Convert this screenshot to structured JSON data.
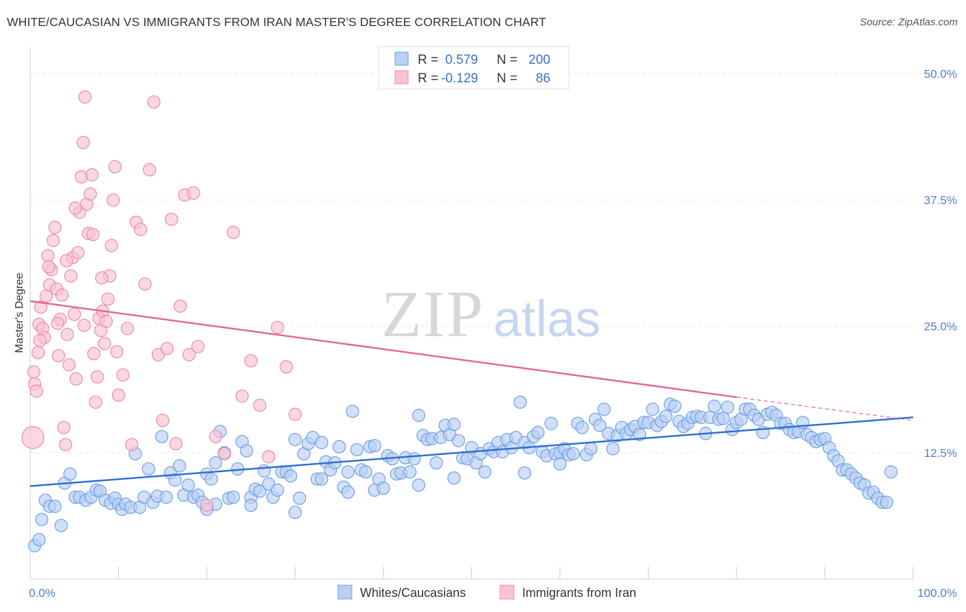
{
  "title": "WHITE/CAUCASIAN VS IMMIGRANTS FROM IRAN MASTER'S DEGREE CORRELATION CHART",
  "source": "Source: ZipAtlas.com",
  "watermark": {
    "zip": "ZIP",
    "atlas": "atlas"
  },
  "chart_data": {
    "type": "scatter",
    "ylabel": "Master's Degree",
    "xlim": [
      0,
      100
    ],
    "ylim": [
      0,
      52
    ],
    "x_tick_labels": [
      "0.0%",
      "100.0%"
    ],
    "y_ticks": [
      {
        "value": 12.5,
        "label": "12.5%"
      },
      {
        "value": 25.0,
        "label": "25.0%"
      },
      {
        "value": 37.5,
        "label": "37.5%"
      },
      {
        "value": 50.0,
        "label": "50.0%"
      }
    ],
    "grid": true,
    "legend": {
      "placement": "top-center",
      "rows": [
        {
          "r_label": "R =",
          "r_value": "0.579",
          "n_label": "N =",
          "n_value": "200",
          "color": "#7aaaf0"
        },
        {
          "r_label": "R =",
          "r_value": "-0.129",
          "n_label": "N =",
          "n_value": "86",
          "color": "#f5a0bb"
        }
      ]
    },
    "series": [
      {
        "name": "Whites/Caucasians",
        "color": "#6d9ee8",
        "fill": "#b9d0f4",
        "trend": {
          "x0": 0,
          "y0": 9.2,
          "x1": 100,
          "y1": 16.0
        },
        "points": [
          [
            0.5,
            3.3
          ],
          [
            1,
            3.9
          ],
          [
            1.3,
            5.9
          ],
          [
            1.7,
            7.8
          ],
          [
            2.2,
            7.2
          ],
          [
            2.8,
            7.2
          ],
          [
            3.5,
            5.3
          ],
          [
            3.9,
            9.5
          ],
          [
            4.5,
            10.4
          ],
          [
            5.1,
            8.1
          ],
          [
            5.6,
            8.1
          ],
          [
            6.3,
            7.8
          ],
          [
            6.9,
            8.1
          ],
          [
            7.5,
            8.8
          ],
          [
            7.9,
            8.7
          ],
          [
            8.5,
            7.8
          ],
          [
            9.1,
            7.5
          ],
          [
            9.6,
            8.0
          ],
          [
            10,
            7.4
          ],
          [
            10.4,
            6.9
          ],
          [
            10.8,
            7.4
          ],
          [
            11.4,
            7.1
          ],
          [
            11.9,
            12.4
          ],
          [
            12.4,
            7.1
          ],
          [
            12.9,
            8.1
          ],
          [
            13.4,
            10.9
          ],
          [
            13.9,
            7.6
          ],
          [
            14.4,
            8.2
          ],
          [
            14.9,
            14.1
          ],
          [
            15.4,
            8.1
          ],
          [
            15.9,
            10.5
          ],
          [
            16.4,
            9.8
          ],
          [
            16.9,
            11.2
          ],
          [
            17.4,
            8.3
          ],
          [
            17.9,
            9.3
          ],
          [
            18.5,
            8.1
          ],
          [
            19,
            8.3
          ],
          [
            19.5,
            7.6
          ],
          [
            20,
            10.4
          ],
          [
            20.5,
            9.9
          ],
          [
            21,
            7.4
          ],
          [
            21.5,
            14.6
          ],
          [
            22,
            12.5
          ],
          [
            22.5,
            8.0
          ],
          [
            23,
            8.1
          ],
          [
            23.5,
            10.9
          ],
          [
            24,
            13.6
          ],
          [
            24.5,
            12.7
          ],
          [
            25,
            8.1
          ],
          [
            25.5,
            8.9
          ],
          [
            26,
            8.7
          ],
          [
            26.5,
            10.7
          ],
          [
            27,
            9.4
          ],
          [
            27.5,
            8.1
          ],
          [
            28,
            8.8
          ],
          [
            28.5,
            10.6
          ],
          [
            29,
            10.6
          ],
          [
            29.5,
            10.2
          ],
          [
            30,
            13.8
          ],
          [
            30.5,
            8.0
          ],
          [
            31,
            12.4
          ],
          [
            31.5,
            13.4
          ],
          [
            32,
            14.0
          ],
          [
            32.5,
            9.9
          ],
          [
            33,
            9.9
          ],
          [
            33.5,
            11.6
          ],
          [
            34,
            10.8
          ],
          [
            34.5,
            11.5
          ],
          [
            35,
            13.1
          ],
          [
            35.5,
            9.1
          ],
          [
            36,
            8.6
          ],
          [
            36.5,
            16.6
          ],
          [
            37,
            12.8
          ],
          [
            37.5,
            10.8
          ],
          [
            38,
            10.6
          ],
          [
            38.5,
            13.1
          ],
          [
            39,
            8.8
          ],
          [
            39.5,
            9.9
          ],
          [
            40,
            9.0
          ],
          [
            40.5,
            12.2
          ],
          [
            41,
            11.9
          ],
          [
            41.5,
            10.4
          ],
          [
            42,
            10.5
          ],
          [
            42.5,
            12.0
          ],
          [
            43,
            10.6
          ],
          [
            43.5,
            11.9
          ],
          [
            44,
            16.2
          ],
          [
            44.5,
            14.2
          ],
          [
            45,
            13.8
          ],
          [
            45.5,
            13.9
          ],
          [
            46,
            11.5
          ],
          [
            46.5,
            14.0
          ],
          [
            47,
            15.2
          ],
          [
            47.5,
            14.3
          ],
          [
            48,
            15.3
          ],
          [
            48.5,
            13.7
          ],
          [
            49,
            12.0
          ],
          [
            49.5,
            11.9
          ],
          [
            50,
            13.0
          ],
          [
            50.5,
            11.5
          ],
          [
            51,
            12.4
          ],
          [
            51.5,
            10.6
          ],
          [
            52,
            12.9
          ],
          [
            52.5,
            12.6
          ],
          [
            53,
            13.5
          ],
          [
            53.5,
            12.6
          ],
          [
            54,
            13.8
          ],
          [
            54.5,
            13.0
          ],
          [
            55,
            14.0
          ],
          [
            55.5,
            17.5
          ],
          [
            56,
            13.5
          ],
          [
            56.5,
            13.0
          ],
          [
            57,
            14.1
          ],
          [
            57.5,
            14.5
          ],
          [
            58,
            12.6
          ],
          [
            58.5,
            12.2
          ],
          [
            59,
            15.4
          ],
          [
            59.5,
            12.4
          ],
          [
            60,
            12.5
          ],
          [
            60.5,
            12.9
          ],
          [
            61,
            12.3
          ],
          [
            61.5,
            12.4
          ],
          [
            62,
            15.4
          ],
          [
            62.5,
            15.0
          ],
          [
            63,
            12.3
          ],
          [
            63.5,
            12.9
          ],
          [
            64,
            15.8
          ],
          [
            64.5,
            15.2
          ],
          [
            65,
            16.8
          ],
          [
            65.5,
            14.4
          ],
          [
            66,
            12.9
          ],
          [
            66.5,
            14.2
          ],
          [
            67,
            15.0
          ],
          [
            67.5,
            14.4
          ],
          [
            68,
            14.8
          ],
          [
            68.5,
            15.1
          ],
          [
            69,
            14.3
          ],
          [
            69.5,
            15.5
          ],
          [
            70,
            15.5
          ],
          [
            70.5,
            16.8
          ],
          [
            71,
            15.2
          ],
          [
            71.5,
            15.6
          ],
          [
            72,
            16.1
          ],
          [
            72.5,
            17.3
          ],
          [
            73,
            17.1
          ],
          [
            73.5,
            15.6
          ],
          [
            74,
            15.1
          ],
          [
            74.5,
            15.4
          ],
          [
            75,
            16.0
          ],
          [
            75.5,
            16.1
          ],
          [
            76,
            16.0
          ],
          [
            76.5,
            14.4
          ],
          [
            77,
            16.0
          ],
          [
            77.5,
            17.1
          ],
          [
            78,
            15.8
          ],
          [
            78.5,
            15.9
          ],
          [
            79,
            17.0
          ],
          [
            79.5,
            14.8
          ],
          [
            80,
            15.5
          ],
          [
            80.5,
            15.8
          ],
          [
            81,
            16.8
          ],
          [
            81.5,
            16.8
          ],
          [
            82,
            16.2
          ],
          [
            82.5,
            15.8
          ],
          [
            83,
            14.5
          ],
          [
            83.5,
            16.3
          ],
          [
            84,
            16.5
          ],
          [
            84.5,
            16.2
          ],
          [
            85,
            15.4
          ],
          [
            85.5,
            15.4
          ],
          [
            86,
            14.8
          ],
          [
            86.5,
            14.5
          ],
          [
            87,
            14.6
          ],
          [
            87.5,
            15.5
          ],
          [
            88,
            14.3
          ],
          [
            88.5,
            14.0
          ],
          [
            89,
            13.6
          ],
          [
            89.5,
            13.8
          ],
          [
            90,
            13.9
          ],
          [
            90.5,
            13.0
          ],
          [
            91,
            12.2
          ],
          [
            91.5,
            11.7
          ],
          [
            92,
            10.8
          ],
          [
            92.5,
            10.8
          ],
          [
            93,
            10.4
          ],
          [
            93.5,
            10.0
          ],
          [
            94,
            9.5
          ],
          [
            94.5,
            9.3
          ],
          [
            95,
            8.5
          ],
          [
            95.5,
            8.6
          ],
          [
            96,
            8.0
          ],
          [
            96.5,
            7.6
          ],
          [
            97,
            7.6
          ],
          [
            97.5,
            10.6
          ],
          [
            60,
            11.4
          ],
          [
            30,
            6.6
          ],
          [
            25,
            7.3
          ],
          [
            36,
            10.6
          ],
          [
            48,
            10.0
          ],
          [
            56,
            10.5
          ],
          [
            33,
            13.5
          ],
          [
            21,
            11.5
          ],
          [
            44,
            9.3
          ],
          [
            39,
            13.2
          ],
          [
            20,
            6.9
          ]
        ]
      },
      {
        "name": "Immigrants from Iran",
        "color": "#ee88a8",
        "fill": "#f8c3d3",
        "trend": {
          "x0": 0,
          "y0": 27.5,
          "x1": 80,
          "y1": 18.0
        },
        "trend_dashed": {
          "x0": 80,
          "y0": 18.0,
          "x1": 100,
          "y1": 15.7
        },
        "points": [
          [
            0.3,
            14.0
          ],
          [
            0.5,
            19.3
          ],
          [
            0.7,
            18.6
          ],
          [
            0.9,
            22.4
          ],
          [
            1.0,
            25.2
          ],
          [
            1.2,
            26.9
          ],
          [
            1.4,
            24.8
          ],
          [
            1.6,
            23.9
          ],
          [
            1.8,
            28.0
          ],
          [
            2.0,
            32.0
          ],
          [
            2.2,
            29.1
          ],
          [
            2.4,
            30.6
          ],
          [
            2.6,
            33.5
          ],
          [
            2.8,
            34.8
          ],
          [
            3.0,
            28.7
          ],
          [
            3.2,
            22.1
          ],
          [
            3.4,
            25.7
          ],
          [
            3.6,
            28.1
          ],
          [
            3.8,
            15.0
          ],
          [
            4.0,
            13.3
          ],
          [
            4.2,
            24.2
          ],
          [
            4.4,
            21.2
          ],
          [
            4.6,
            30.0
          ],
          [
            4.8,
            31.8
          ],
          [
            5.0,
            26.2
          ],
          [
            5.2,
            19.8
          ],
          [
            5.4,
            32.3
          ],
          [
            5.6,
            36.3
          ],
          [
            5.8,
            39.8
          ],
          [
            6.0,
            43.2
          ],
          [
            6.2,
            47.7
          ],
          [
            6.4,
            37.1
          ],
          [
            6.6,
            34.2
          ],
          [
            6.8,
            38.1
          ],
          [
            7.0,
            40.0
          ],
          [
            7.2,
            22.3
          ],
          [
            7.4,
            17.5
          ],
          [
            7.6,
            20.0
          ],
          [
            7.8,
            25.8
          ],
          [
            8.0,
            24.6
          ],
          [
            8.2,
            26.5
          ],
          [
            8.4,
            23.3
          ],
          [
            8.6,
            25.5
          ],
          [
            8.8,
            27.7
          ],
          [
            9.0,
            30.0
          ],
          [
            9.2,
            33.0
          ],
          [
            9.4,
            37.5
          ],
          [
            9.6,
            40.8
          ],
          [
            9.8,
            22.5
          ],
          [
            10,
            18.2
          ],
          [
            10.5,
            20.2
          ],
          [
            11,
            24.8
          ],
          [
            11.5,
            13.3
          ],
          [
            12,
            35.3
          ],
          [
            12.5,
            34.6
          ],
          [
            13,
            29.2
          ],
          [
            13.5,
            40.5
          ],
          [
            14,
            47.2
          ],
          [
            14.5,
            22.2
          ],
          [
            15,
            15.7
          ],
          [
            15.5,
            22.8
          ],
          [
            16,
            35.6
          ],
          [
            16.5,
            13.4
          ],
          [
            17,
            27.0
          ],
          [
            17.5,
            38.0
          ],
          [
            18,
            22.2
          ],
          [
            18.5,
            38.2
          ],
          [
            19,
            23.0
          ],
          [
            20,
            7.3
          ],
          [
            21,
            14.1
          ],
          [
            22,
            12.4
          ],
          [
            23,
            34.3
          ],
          [
            24,
            18.1
          ],
          [
            25,
            21.6
          ],
          [
            26,
            17.2
          ],
          [
            27,
            12.1
          ],
          [
            28,
            24.9
          ],
          [
            29,
            21.0
          ],
          [
            30,
            16.3
          ],
          [
            0.4,
            20.5
          ],
          [
            1.1,
            23.6
          ],
          [
            2.1,
            30.9
          ],
          [
            3.1,
            25.3
          ],
          [
            4.1,
            31.5
          ],
          [
            5.1,
            36.7
          ],
          [
            6.1,
            25.1
          ],
          [
            7.1,
            34.1
          ],
          [
            8.1,
            29.8
          ]
        ]
      }
    ]
  }
}
